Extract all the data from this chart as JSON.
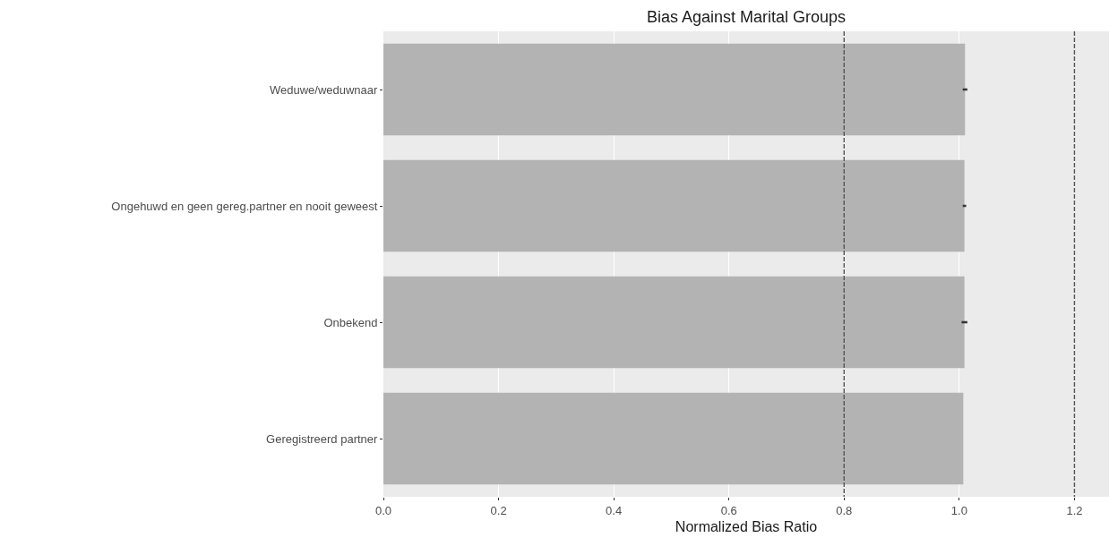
{
  "chart_data": {
    "type": "bar",
    "orientation": "horizontal",
    "title": "Bias Against Marital Groups",
    "xlabel": "Normalized Bias Ratio",
    "categories": [
      "Weduwe/weduwnaar",
      "Ongehuwd en geen gereg.partner en nooit geweest",
      "Onbekend",
      "Geregistreerd partner"
    ],
    "values": [
      1.01,
      1.009,
      1.009,
      1.007
    ],
    "errors": [
      0.004,
      0.003,
      0.005,
      null
    ],
    "color": "#b3b3b3",
    "xlim": [
      0,
      1.26
    ],
    "xticks": [
      {
        "value": 0,
        "label": "0.0"
      },
      0.2,
      0.4,
      0.6,
      0.8,
      {
        "value": 1,
        "label": "1.0"
      },
      1.2
    ],
    "ref_lines": [
      {
        "axis": "x",
        "value": 0.8,
        "color": "#555555",
        "line_style": "dashed"
      },
      {
        "axis": "x",
        "value": 1.2,
        "color": "#555555",
        "line_style": "dashed"
      }
    ],
    "grid": "x"
  }
}
